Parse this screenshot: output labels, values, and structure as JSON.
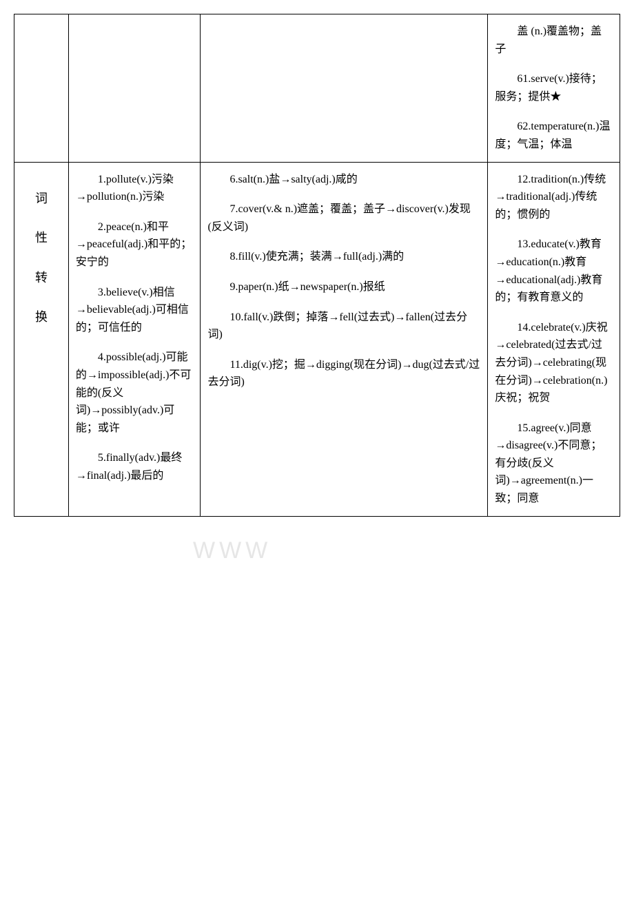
{
  "row1": {
    "col4": {
      "items": [
        "盖 (n.)覆盖物；盖子",
        "61.serve(v.)接待；服务；提供★",
        "62.temperature(n.)温度；气温；体温"
      ]
    }
  },
  "row2": {
    "label": [
      "词",
      "性",
      "转",
      "换"
    ],
    "col2": {
      "items": [
        "1.pollute(v.)污染→pollution(n.)污染",
        "2.peace(n.)和平→peaceful(adj.)和平的；安宁的",
        "3.believe(v.)相信→believable(adj.)可相信的；可信任的",
        "4.possible(adj.)可能的→impossible(adj.)不可能的(反义词)→possibly(adv.)可能；或许",
        "5.finally(adv.)最终→final(adj.)最后的"
      ]
    },
    "col3": {
      "items": [
        "6.salt(n.)盐→salty(adj.)咸的",
        "7.cover(v.& n.)遮盖；覆盖；盖子→discover(v.)发现(反义词)",
        "8.fill(v.)使充满；装满→full(adj.)满的",
        "9.paper(n.)纸→newspaper(n.)报纸",
        "10.fall(v.)跌倒；掉落→fell(过去式)→fallen(过去分词)",
        "11.dig(v.)挖；掘→digging(现在分词)→dug(过去式/过去分词)"
      ]
    },
    "col4": {
      "items": [
        "12.tradition(n.)传统→traditional(adj.)传统的；惯例的",
        "13.educate(v.)教育→education(n.)教育→educational(adj.)教育的；有教育意义的",
        "14.celebrate(v.)庆祝→celebrated(过去式/过去分词)→celebrating(现在分词)→celebration(n.)庆祝；祝贺",
        "15.agree(v.)同意→disagree(v.)不同意；有分歧(反义词)→agreement(n.)一致；同意"
      ]
    }
  },
  "watermark": "WWW"
}
